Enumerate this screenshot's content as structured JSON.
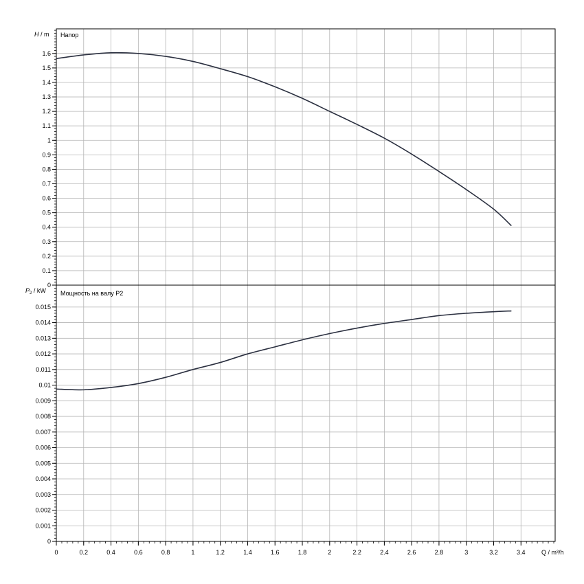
{
  "chart_data": [
    {
      "type": "line",
      "panel": "head",
      "ylabel_symbol": "H",
      "ylabel_unit": " / m",
      "series_label": "Напор",
      "xlim": [
        0,
        3.65
      ],
      "ylim": [
        0,
        1.77
      ],
      "yticks": [
        0,
        0.1,
        0.2,
        0.3,
        0.4,
        0.5,
        0.6,
        0.7,
        0.8,
        0.9,
        1,
        1.1,
        1.2,
        1.3,
        1.4,
        1.5,
        1.6
      ],
      "ytick_labels": [
        "0",
        "0.1",
        "0.2",
        "0.3",
        "0.4",
        "0.5",
        "0.6",
        "0.7",
        "0.8",
        "0.9",
        "1",
        "1.1",
        "1.2",
        "1.3",
        "1.4",
        "1.5",
        "1.6"
      ],
      "grid": true,
      "series": [
        {
          "color": "#2b3040",
          "x": [
            0,
            0.2,
            0.4,
            0.6,
            0.8,
            1.0,
            1.2,
            1.4,
            1.6,
            1.8,
            2.0,
            2.2,
            2.4,
            2.6,
            2.8,
            3.0,
            3.2,
            3.33
          ],
          "y": [
            1.565,
            1.59,
            1.605,
            1.6,
            1.58,
            1.545,
            1.495,
            1.44,
            1.37,
            1.29,
            1.2,
            1.11,
            1.015,
            0.905,
            0.785,
            0.66,
            0.525,
            0.41
          ]
        }
      ]
    },
    {
      "type": "line",
      "panel": "power",
      "ylabel_symbol": "P",
      "ylabel_sub": "2",
      "ylabel_unit": " / kW",
      "series_label": "Мощность на валу P2",
      "xlim": [
        0,
        3.65
      ],
      "ylim": [
        0,
        0.0164
      ],
      "yticks": [
        0,
        0.001,
        0.002,
        0.003,
        0.004,
        0.005,
        0.006,
        0.007,
        0.008,
        0.009,
        0.01,
        0.011,
        0.012,
        0.013,
        0.014,
        0.015
      ],
      "ytick_labels": [
        "0",
        "0.001",
        "0.002",
        "0.003",
        "0.004",
        "0.005",
        "0.006",
        "0.007",
        "0.008",
        "0.009",
        "0.01",
        "0.011",
        "0.012",
        "0.013",
        "0.014",
        "0.015"
      ],
      "grid": true,
      "series": [
        {
          "color": "#2b3040",
          "x": [
            0,
            0.2,
            0.4,
            0.6,
            0.8,
            1.0,
            1.2,
            1.4,
            1.6,
            1.8,
            2.0,
            2.2,
            2.4,
            2.6,
            2.8,
            3.0,
            3.2,
            3.33
          ],
          "y": [
            0.00975,
            0.0097,
            0.00985,
            0.0101,
            0.0105,
            0.011,
            0.01145,
            0.012,
            0.01245,
            0.0129,
            0.0133,
            0.01365,
            0.01395,
            0.0142,
            0.01445,
            0.0146,
            0.0147,
            0.01475
          ]
        }
      ]
    }
  ],
  "xaxis": {
    "ticks": [
      0,
      0.2,
      0.4,
      0.6,
      0.8,
      1.0,
      1.2,
      1.4,
      1.6,
      1.8,
      2.0,
      2.2,
      2.4,
      2.6,
      2.8,
      3.0,
      3.2,
      3.4
    ],
    "tick_labels": [
      "0",
      "0.2",
      "0.4",
      "0.6",
      "0.8",
      "1",
      "1.2",
      "1.4",
      "1.6",
      "1.8",
      "2",
      "2.2",
      "2.4",
      "2.6",
      "2.8",
      "3",
      "3.2",
      "3.4"
    ],
    "label": "Q / m³/h"
  }
}
